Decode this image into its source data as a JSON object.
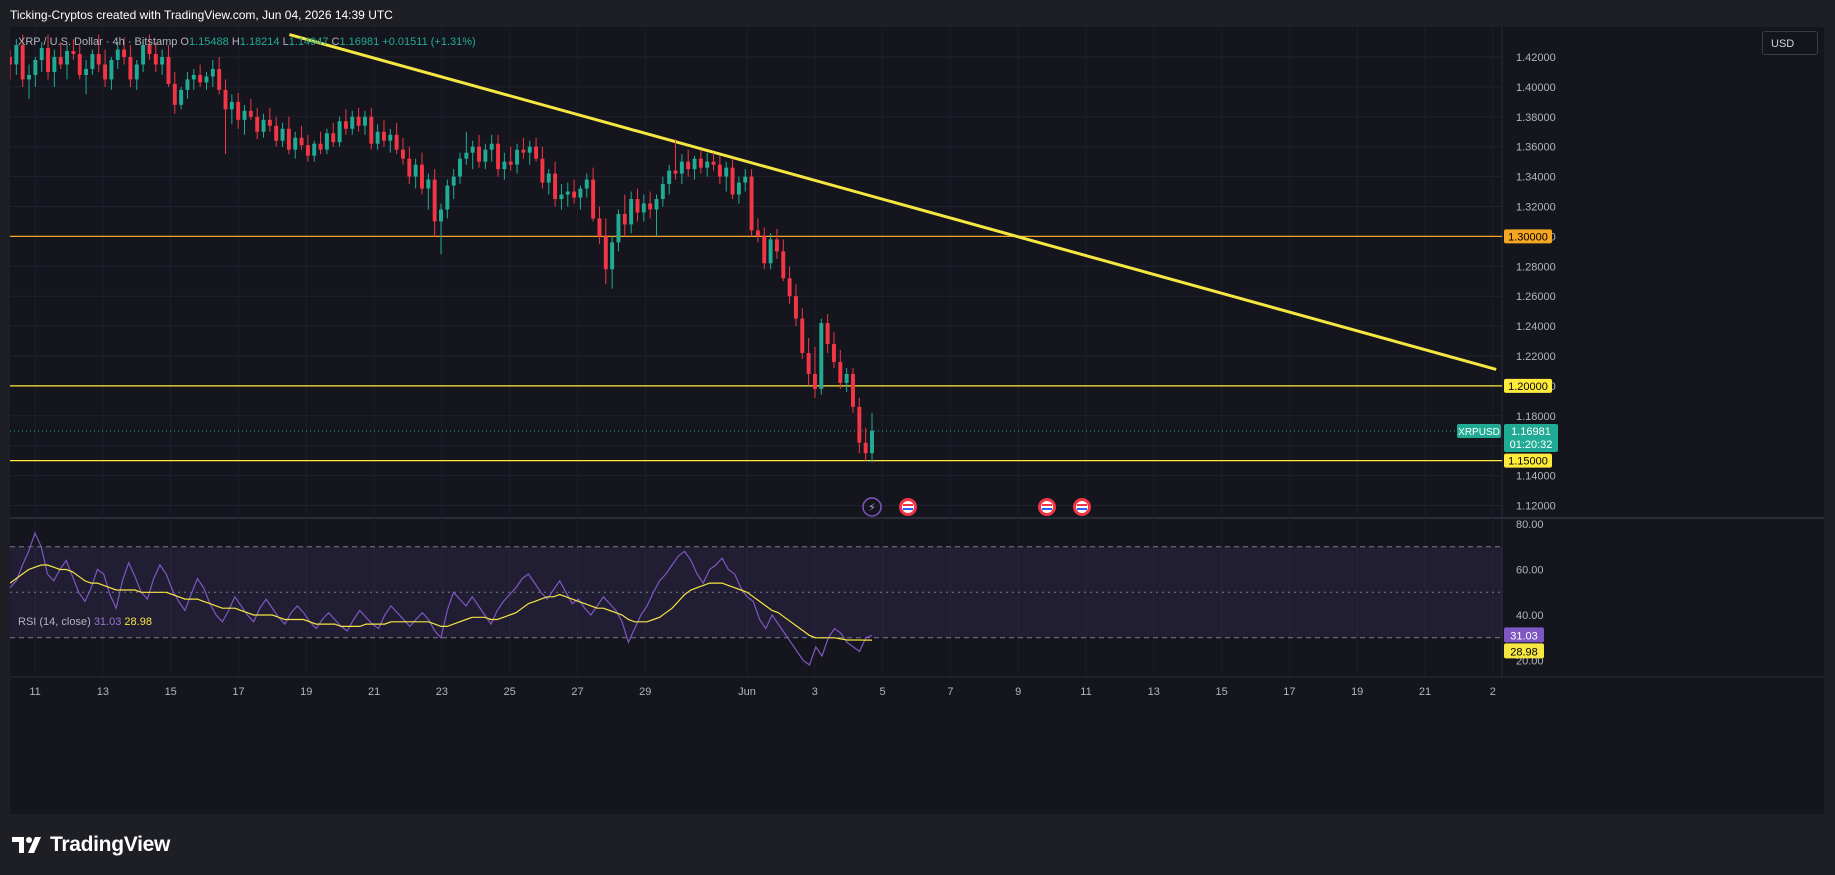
{
  "header": {
    "text": "Ticking-Cryptos created with TradingView.com, Jun 04, 2026 14:39 UTC"
  },
  "legend": {
    "symbol": "XRP / U.S. Dollar · 4h · Bitstamp",
    "o_label": "O",
    "o": "1.15488",
    "h_label": "H",
    "h": "1.18214",
    "l_label": "L",
    "l": "1.14947",
    "c_label": "C",
    "c": "1.16981",
    "change": "+0.01511 (+1.31%)"
  },
  "currency_label": "USD",
  "rsi_legend": {
    "name": "RSI (14, close)",
    "rsi": "31.03",
    "ma": "28.98"
  },
  "footer": {
    "brand": "TradingView"
  },
  "colors": {
    "up": "#22ab94",
    "down": "#f23645",
    "trendline": "#f5e642",
    "level_orange": "#f5a623",
    "level_yellow": "#ffeb3b",
    "rsi": "#7e57c2",
    "rsi_ma": "#f5e642",
    "rsi_band": "#7e57c2"
  },
  "chart_data": {
    "type": "candlestick",
    "symbol": "XRPUSD",
    "timeframe": "4h",
    "ylim": [
      1.11,
      1.435
    ],
    "y_ticks": [
      "1.42000",
      "1.40000",
      "1.38000",
      "1.36000",
      "1.34000",
      "1.32000",
      "1.30000",
      "1.28000",
      "1.26000",
      "1.24000",
      "1.22000",
      "1.20000",
      "1.18000",
      "1.16000",
      "1.14000",
      "1.12000"
    ],
    "x_ticks": [
      "11",
      "13",
      "15",
      "17",
      "19",
      "21",
      "23",
      "25",
      "27",
      "29",
      "Jun",
      "3",
      "5",
      "7",
      "9",
      "11",
      "13",
      "15",
      "17",
      "19",
      "21",
      "2"
    ],
    "x_tick_days": [
      -21,
      -19,
      -17,
      -15,
      -13,
      -11,
      -9,
      -7,
      -5,
      -3,
      0,
      2,
      4,
      6,
      8,
      10,
      12,
      14,
      16,
      18,
      20,
      22
    ],
    "last_price": {
      "label": "XRPUSD",
      "price": "1.16981",
      "countdown": "01:20:32"
    },
    "levels": [
      {
        "price": 1.3,
        "label": "1.30000",
        "color": "orange"
      },
      {
        "price": 1.2,
        "label": "1.20000",
        "color": "yellow"
      },
      {
        "price": 1.15,
        "label": "1.15000",
        "color": "yellow"
      }
    ],
    "trendline": {
      "from": {
        "day": -13.5,
        "price": 1.435
      },
      "to": {
        "day": 22.1,
        "price": 1.211
      }
    },
    "ohlc": [
      [
        1.42,
        1.425,
        1.405,
        1.415
      ],
      [
        1.415,
        1.432,
        1.408,
        1.428
      ],
      [
        1.428,
        1.435,
        1.4,
        1.405
      ],
      [
        1.405,
        1.415,
        1.392,
        1.408
      ],
      [
        1.408,
        1.42,
        1.4,
        1.418
      ],
      [
        1.418,
        1.43,
        1.41,
        1.426
      ],
      [
        1.426,
        1.435,
        1.405,
        1.41
      ],
      [
        1.41,
        1.425,
        1.4,
        1.42
      ],
      [
        1.42,
        1.43,
        1.412,
        1.415
      ],
      [
        1.415,
        1.428,
        1.405,
        1.424
      ],
      [
        1.424,
        1.432,
        1.418,
        1.422
      ],
      [
        1.422,
        1.428,
        1.405,
        1.408
      ],
      [
        1.408,
        1.418,
        1.395,
        1.412
      ],
      [
        1.412,
        1.425,
        1.408,
        1.422
      ],
      [
        1.422,
        1.435,
        1.41,
        1.415
      ],
      [
        1.415,
        1.425,
        1.4,
        1.405
      ],
      [
        1.405,
        1.42,
        1.398,
        1.418
      ],
      [
        1.418,
        1.43,
        1.412,
        1.425
      ],
      [
        1.425,
        1.433,
        1.415,
        1.42
      ],
      [
        1.42,
        1.428,
        1.4,
        1.405
      ],
      [
        1.405,
        1.418,
        1.398,
        1.415
      ],
      [
        1.415,
        1.43,
        1.41,
        1.428
      ],
      [
        1.428,
        1.435,
        1.418,
        1.422
      ],
      [
        1.422,
        1.43,
        1.41,
        1.415
      ],
      [
        1.415,
        1.425,
        1.408,
        1.42
      ],
      [
        1.42,
        1.428,
        1.4,
        1.402
      ],
      [
        1.402,
        1.41,
        1.382,
        1.388
      ],
      [
        1.388,
        1.4,
        1.385,
        1.398
      ],
      [
        1.398,
        1.41,
        1.392,
        1.405
      ],
      [
        1.405,
        1.412,
        1.398,
        1.408
      ],
      [
        1.408,
        1.415,
        1.4,
        1.403
      ],
      [
        1.403,
        1.41,
        1.398,
        1.407
      ],
      [
        1.407,
        1.418,
        1.4,
        1.412
      ],
      [
        1.412,
        1.42,
        1.395,
        1.398
      ],
      [
        1.398,
        1.405,
        1.355,
        1.385
      ],
      [
        1.385,
        1.395,
        1.375,
        1.39
      ],
      [
        1.39,
        1.396,
        1.372,
        1.378
      ],
      [
        1.378,
        1.388,
        1.368,
        1.384
      ],
      [
        1.384,
        1.392,
        1.378,
        1.38
      ],
      [
        1.38,
        1.386,
        1.365,
        1.37
      ],
      [
        1.37,
        1.382,
        1.366,
        1.378
      ],
      [
        1.378,
        1.386,
        1.37,
        1.374
      ],
      [
        1.374,
        1.38,
        1.36,
        1.364
      ],
      [
        1.364,
        1.376,
        1.36,
        1.372
      ],
      [
        1.372,
        1.38,
        1.355,
        1.358
      ],
      [
        1.358,
        1.37,
        1.352,
        1.366
      ],
      [
        1.366,
        1.374,
        1.358,
        1.361
      ],
      [
        1.361,
        1.368,
        1.35,
        1.354
      ],
      [
        1.354,
        1.364,
        1.35,
        1.362
      ],
      [
        1.362,
        1.37,
        1.355,
        1.358
      ],
      [
        1.358,
        1.372,
        1.355,
        1.369
      ],
      [
        1.369,
        1.376,
        1.36,
        1.363
      ],
      [
        1.363,
        1.38,
        1.36,
        1.377
      ],
      [
        1.377,
        1.385,
        1.368,
        1.372
      ],
      [
        1.372,
        1.384,
        1.368,
        1.38
      ],
      [
        1.38,
        1.386,
        1.37,
        1.374
      ],
      [
        1.374,
        1.384,
        1.368,
        1.38
      ],
      [
        1.38,
        1.386,
        1.358,
        1.362
      ],
      [
        1.362,
        1.375,
        1.358,
        1.37
      ],
      [
        1.37,
        1.378,
        1.36,
        1.364
      ],
      [
        1.364,
        1.372,
        1.356,
        1.368
      ],
      [
        1.368,
        1.376,
        1.355,
        1.358
      ],
      [
        1.358,
        1.366,
        1.348,
        1.352
      ],
      [
        1.352,
        1.36,
        1.335,
        1.34
      ],
      [
        1.34,
        1.352,
        1.332,
        1.348
      ],
      [
        1.348,
        1.356,
        1.328,
        1.332
      ],
      [
        1.332,
        1.342,
        1.318,
        1.338
      ],
      [
        1.338,
        1.345,
        1.3,
        1.31
      ],
      [
        1.31,
        1.322,
        1.288,
        1.318
      ],
      [
        1.318,
        1.338,
        1.312,
        1.334
      ],
      [
        1.334,
        1.345,
        1.325,
        1.34
      ],
      [
        1.34,
        1.356,
        1.335,
        1.352
      ],
      [
        1.352,
        1.37,
        1.348,
        1.356
      ],
      [
        1.356,
        1.364,
        1.345,
        1.36
      ],
      [
        1.36,
        1.368,
        1.346,
        1.35
      ],
      [
        1.35,
        1.362,
        1.345,
        1.358
      ],
      [
        1.358,
        1.368,
        1.35,
        1.362
      ],
      [
        1.362,
        1.368,
        1.34,
        1.345
      ],
      [
        1.345,
        1.356,
        1.338,
        1.35
      ],
      [
        1.35,
        1.36,
        1.344,
        1.348
      ],
      [
        1.348,
        1.362,
        1.342,
        1.358
      ],
      [
        1.358,
        1.366,
        1.352,
        1.356
      ],
      [
        1.356,
        1.364,
        1.348,
        1.36
      ],
      [
        1.36,
        1.366,
        1.35,
        1.352
      ],
      [
        1.352,
        1.36,
        1.332,
        1.336
      ],
      [
        1.336,
        1.345,
        1.328,
        1.342
      ],
      [
        1.342,
        1.35,
        1.32,
        1.325
      ],
      [
        1.325,
        1.335,
        1.318,
        1.328
      ],
      [
        1.328,
        1.336,
        1.32,
        1.33
      ],
      [
        1.33,
        1.338,
        1.322,
        1.326
      ],
      [
        1.326,
        1.334,
        1.318,
        1.332
      ],
      [
        1.332,
        1.342,
        1.326,
        1.338
      ],
      [
        1.338,
        1.346,
        1.31,
        1.312
      ],
      [
        1.312,
        1.32,
        1.295,
        1.3
      ],
      [
        1.3,
        1.312,
        1.268,
        1.278
      ],
      [
        1.278,
        1.3,
        1.265,
        1.296
      ],
      [
        1.296,
        1.318,
        1.29,
        1.315
      ],
      [
        1.315,
        1.328,
        1.3,
        1.308
      ],
      [
        1.308,
        1.33,
        1.302,
        1.325
      ],
      [
        1.325,
        1.332,
        1.31,
        1.316
      ],
      [
        1.316,
        1.328,
        1.31,
        1.322
      ],
      [
        1.322,
        1.33,
        1.312,
        1.318
      ],
      [
        1.318,
        1.328,
        1.3,
        1.325
      ],
      [
        1.325,
        1.34,
        1.32,
        1.335
      ],
      [
        1.335,
        1.348,
        1.328,
        1.344
      ],
      [
        1.344,
        1.365,
        1.338,
        1.342
      ],
      [
        1.342,
        1.355,
        1.335,
        1.35
      ],
      [
        1.35,
        1.358,
        1.34,
        1.345
      ],
      [
        1.345,
        1.354,
        1.338,
        1.352
      ],
      [
        1.352,
        1.358,
        1.342,
        1.346
      ],
      [
        1.346,
        1.356,
        1.34,
        1.35
      ],
      [
        1.35,
        1.356,
        1.344,
        1.348
      ],
      [
        1.348,
        1.354,
        1.335,
        1.34
      ],
      [
        1.34,
        1.35,
        1.33,
        1.346
      ],
      [
        1.346,
        1.352,
        1.325,
        1.328
      ],
      [
        1.328,
        1.34,
        1.322,
        1.336
      ],
      [
        1.336,
        1.345,
        1.33,
        1.34
      ],
      [
        1.34,
        1.345,
        1.3,
        1.304
      ],
      [
        1.304,
        1.312,
        1.296,
        1.3
      ],
      [
        1.3,
        1.306,
        1.278,
        1.282
      ],
      [
        1.282,
        1.302,
        1.278,
        1.298
      ],
      [
        1.298,
        1.305,
        1.285,
        1.29
      ],
      [
        1.29,
        1.298,
        1.27,
        1.272
      ],
      [
        1.272,
        1.28,
        1.255,
        1.26
      ],
      [
        1.26,
        1.268,
        1.24,
        1.245
      ],
      [
        1.245,
        1.252,
        1.218,
        1.222
      ],
      [
        1.222,
        1.232,
        1.2,
        1.208
      ],
      [
        1.208,
        1.226,
        1.192,
        1.198
      ],
      [
        1.198,
        1.245,
        1.194,
        1.242
      ],
      [
        1.242,
        1.248,
        1.222,
        1.228
      ],
      [
        1.228,
        1.236,
        1.212,
        1.216
      ],
      [
        1.216,
        1.224,
        1.198,
        1.202
      ],
      [
        1.202,
        1.212,
        1.196,
        1.208
      ],
      [
        1.208,
        1.212,
        1.182,
        1.186
      ],
      [
        1.186,
        1.192,
        1.155,
        1.162
      ],
      [
        1.162,
        1.172,
        1.15,
        1.155
      ],
      [
        1.155,
        1.182,
        1.149,
        1.17
      ]
    ],
    "rsi": {
      "name": "RSI (14, close)",
      "ylim": [
        15,
        80
      ],
      "y_ticks": [
        "80.00",
        "60.00",
        "40.00",
        "20.00"
      ],
      "bands": [
        70,
        50,
        30
      ],
      "rsi_values": [
        52,
        55,
        62,
        68,
        76,
        70,
        58,
        55,
        60,
        64,
        57,
        50,
        46,
        52,
        60,
        58,
        49,
        43,
        55,
        63,
        57,
        50,
        47,
        56,
        62,
        58,
        51,
        46,
        42,
        49,
        56,
        52,
        45,
        40,
        37,
        42,
        48,
        44,
        40,
        37,
        43,
        47,
        43,
        39,
        36,
        41,
        44,
        41,
        37,
        34,
        38,
        41,
        38,
        35,
        33,
        38,
        42,
        39,
        36,
        34,
        40,
        44,
        41,
        38,
        35,
        38,
        41,
        38,
        33,
        30,
        42,
        50,
        47,
        44,
        48,
        44,
        40,
        36,
        42,
        46,
        49,
        52,
        56,
        58,
        54,
        50,
        47,
        51,
        55,
        50,
        45,
        47,
        43,
        40,
        44,
        48,
        45,
        42,
        37,
        28,
        34,
        40,
        44,
        50,
        55,
        58,
        62,
        66,
        68,
        64,
        58,
        54,
        60,
        62,
        65,
        60,
        58,
        52,
        48,
        46,
        38,
        34,
        40,
        36,
        32,
        28,
        24,
        20,
        18,
        26,
        22,
        30,
        34,
        32,
        28,
        26,
        24,
        30,
        31.03
      ],
      "ma_values": [
        54,
        56,
        58,
        60,
        61,
        62,
        62,
        61,
        60,
        60,
        59,
        57,
        55,
        54,
        54,
        53,
        52,
        51,
        51,
        51,
        51,
        50,
        50,
        50,
        50,
        50,
        49,
        48,
        47,
        47,
        47,
        46,
        45,
        44,
        43,
        43,
        43,
        42,
        41,
        40,
        40,
        40,
        40,
        39,
        38,
        38,
        38,
        38,
        37,
        36,
        36,
        36,
        36,
        35,
        35,
        35,
        35,
        36,
        36,
        36,
        36,
        37,
        37,
        37,
        37,
        37,
        37,
        37,
        36,
        35,
        35,
        36,
        37,
        38,
        39,
        39,
        39,
        38,
        38,
        39,
        40,
        41,
        43,
        45,
        46,
        47,
        48,
        48,
        49,
        48,
        47,
        46,
        45,
        44,
        43,
        43,
        42,
        41,
        40,
        38,
        37,
        37,
        37,
        38,
        39,
        41,
        43,
        46,
        49,
        51,
        52,
        53,
        54,
        54,
        54,
        53,
        52,
        51,
        50,
        48,
        46,
        44,
        42,
        41,
        39,
        37,
        35,
        33,
        31,
        30,
        30,
        30,
        30,
        29.5,
        29,
        29,
        29,
        28.98,
        28.98
      ]
    }
  }
}
